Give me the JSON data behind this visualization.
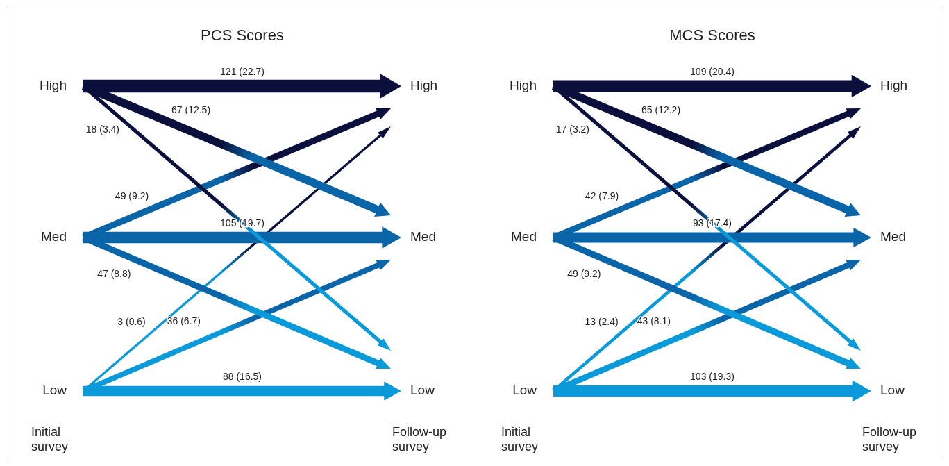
{
  "chart_data": [
    {
      "type": "other",
      "title": "PCS Scores",
      "categories": [
        "High",
        "Med",
        "Low"
      ],
      "annotations": [
        "Initial survey",
        "Follow-up survey"
      ],
      "series": [
        {
          "color": "#0b0f3c",
          "values": [
            121,
            49,
            3
          ],
          "value_labels": [
            "121 (22.7)",
            "49 (9.2)",
            "3 (0.6)"
          ]
        },
        {
          "color": "#0a64a8",
          "values": [
            67,
            105,
            36
          ],
          "value_labels": [
            "67 (12.5)",
            "105 (19.7)",
            "36 (6.7)"
          ]
        },
        {
          "color": "#0a9ad9",
          "values": [
            18,
            47,
            88
          ],
          "value_labels": [
            "18 (3.4)",
            "47 (8.8)",
            "88 (16.5)"
          ]
        }
      ]
    },
    {
      "type": "other",
      "title": "MCS Scores",
      "categories": [
        "High",
        "Med",
        "Low"
      ],
      "annotations": [
        "Initial survey",
        "Follow-up survey"
      ],
      "series": [
        {
          "color": "#0b0f3c",
          "values": [
            109,
            42,
            13
          ],
          "value_labels": [
            "109 (20.4)",
            "42 (7.9)",
            "13 (2.4)"
          ]
        },
        {
          "color": "#0a64a8",
          "values": [
            65,
            93,
            43
          ],
          "value_labels": [
            "65 (12.2)",
            "93 (17.4)",
            "43 (8.1)"
          ]
        },
        {
          "color": "#0a9ad9",
          "values": [
            17,
            49,
            103
          ],
          "value_labels": [
            "17 (3.2)",
            "49 (9.2)",
            "103 (19.3)"
          ]
        }
      ]
    }
  ]
}
